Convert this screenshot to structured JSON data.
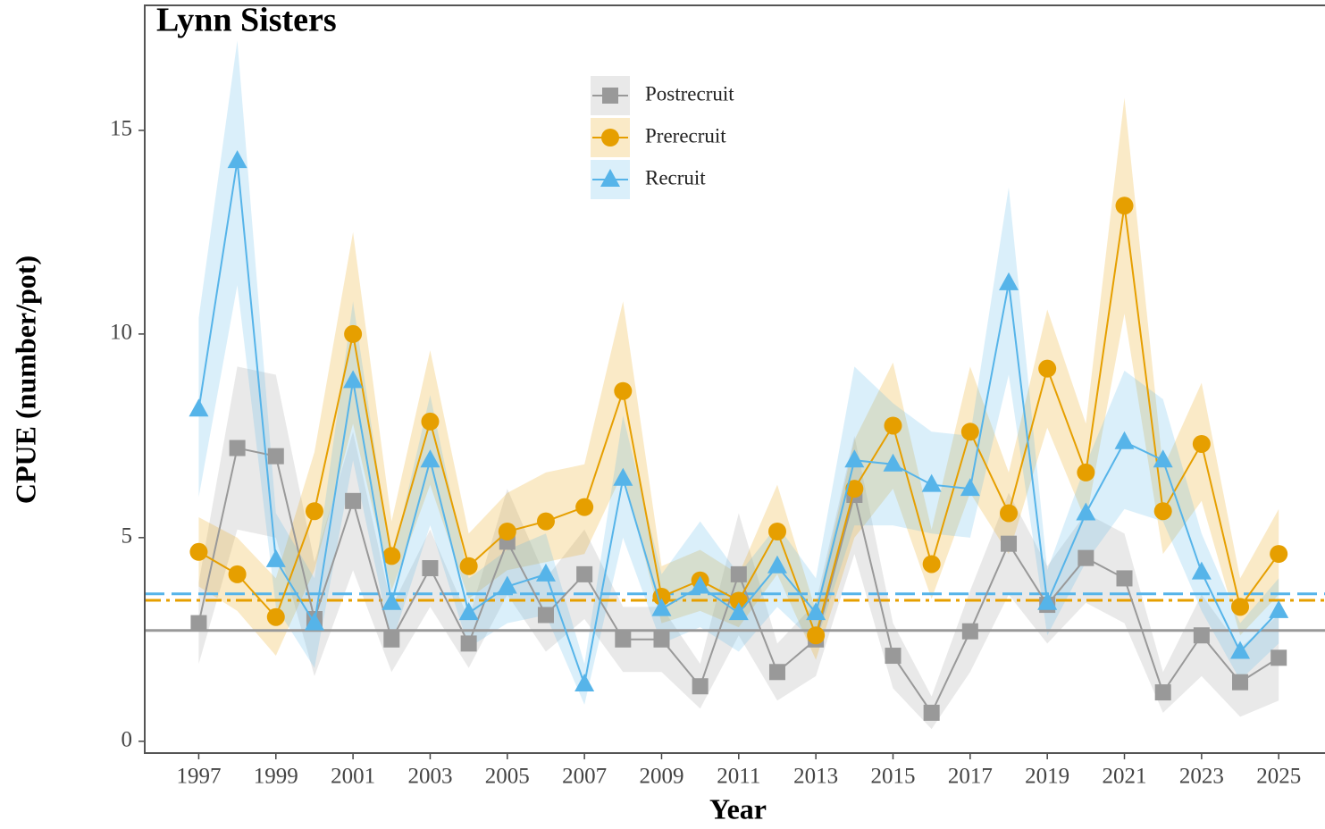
{
  "chart_data": {
    "type": "line",
    "title": "Lynn Sisters",
    "x_label": "Year",
    "y_label": "CPUE (number/pot)",
    "x": [
      1997,
      1998,
      1999,
      2000,
      2001,
      2002,
      2003,
      2004,
      2005,
      2006,
      2007,
      2008,
      2009,
      2010,
      2011,
      2012,
      2013,
      2014,
      2015,
      2016,
      2017,
      2018,
      2019,
      2020,
      2021,
      2022,
      2023,
      2024,
      2025
    ],
    "xlim": [
      1995.6,
      2026.2
    ],
    "xticks": [
      1997,
      1999,
      2001,
      2003,
      2005,
      2007,
      2009,
      2011,
      2013,
      2015,
      2017,
      2019,
      2021,
      2023,
      2025
    ],
    "ylim": [
      -0.29,
      18.07
    ],
    "yticks": [
      0,
      5,
      10,
      15
    ],
    "legend": "top-center",
    "series": [
      {
        "name": "Postrecruit",
        "color": "#999999",
        "marker": "square",
        "reference": 2.72,
        "reference_style": "solid",
        "values": [
          2.9,
          7.2,
          7.0,
          3.0,
          5.9,
          2.5,
          4.25,
          2.4,
          4.9,
          3.1,
          4.1,
          2.5,
          2.5,
          1.35,
          4.1,
          1.7,
          2.5,
          6.05,
          2.1,
          0.7,
          2.7,
          4.85,
          3.35,
          4.5,
          4.0,
          1.2,
          2.6,
          1.45,
          2.05
        ],
        "lower": [
          1.9,
          5.2,
          5.0,
          1.6,
          4.2,
          1.7,
          3.3,
          1.8,
          3.6,
          2.2,
          3.0,
          1.7,
          1.7,
          0.8,
          2.6,
          1.0,
          1.6,
          4.6,
          1.3,
          0.3,
          1.7,
          3.6,
          2.4,
          3.4,
          2.9,
          0.7,
          1.6,
          0.6,
          1.0
        ],
        "upper": [
          3.9,
          9.2,
          9.0,
          4.4,
          7.6,
          3.3,
          5.2,
          3.0,
          6.2,
          4.0,
          5.2,
          3.3,
          3.3,
          1.9,
          5.6,
          2.4,
          3.4,
          7.5,
          2.9,
          1.1,
          3.7,
          6.1,
          4.3,
          5.6,
          5.1,
          1.7,
          3.6,
          2.3,
          3.1
        ]
      },
      {
        "name": "Prerecruit",
        "color": "#e69f00",
        "marker": "circle",
        "reference": 3.46,
        "reference_style": "dashdot",
        "values": [
          4.65,
          4.1,
          3.05,
          5.65,
          10.0,
          4.55,
          7.85,
          4.3,
          5.15,
          5.4,
          5.75,
          8.6,
          3.55,
          3.95,
          3.45,
          5.15,
          2.6,
          6.2,
          7.75,
          4.35,
          7.6,
          5.6,
          9.15,
          6.6,
          13.15,
          5.65,
          7.3,
          3.3,
          4.6
        ],
        "lower": [
          3.8,
          3.2,
          2.1,
          4.2,
          7.8,
          3.7,
          6.3,
          3.5,
          4.2,
          4.4,
          4.6,
          6.6,
          2.9,
          3.2,
          2.8,
          4.1,
          2.0,
          5.0,
          6.2,
          3.5,
          6.1,
          4.6,
          7.7,
          5.4,
          10.5,
          4.6,
          5.9,
          2.6,
          3.6
        ],
        "upper": [
          5.5,
          5.0,
          4.0,
          7.1,
          12.5,
          5.4,
          9.6,
          5.1,
          6.1,
          6.6,
          6.8,
          10.8,
          4.3,
          4.7,
          4.1,
          6.3,
          3.2,
          7.4,
          9.3,
          5.2,
          9.2,
          6.6,
          10.6,
          7.8,
          15.8,
          6.7,
          8.8,
          4.0,
          5.7
        ]
      },
      {
        "name": "Recruit",
        "color": "#56b4e9",
        "marker": "triangle",
        "reference": 3.62,
        "reference_style": "dashed",
        "values": [
          8.15,
          14.25,
          4.45,
          2.9,
          8.85,
          3.4,
          6.9,
          3.15,
          3.8,
          4.1,
          1.4,
          6.45,
          3.25,
          3.8,
          3.15,
          4.3,
          3.15,
          6.9,
          6.8,
          6.3,
          6.2,
          11.25,
          3.4,
          5.6,
          7.35,
          6.9,
          4.15,
          2.2,
          3.2
        ],
        "lower": [
          6.0,
          11.2,
          3.3,
          1.8,
          6.9,
          2.4,
          5.3,
          2.3,
          2.9,
          3.1,
          0.9,
          5.0,
          2.4,
          2.8,
          2.2,
          3.3,
          2.4,
          5.3,
          5.3,
          5.1,
          5.0,
          9.0,
          2.6,
          4.4,
          5.7,
          5.4,
          3.2,
          1.5,
          2.4
        ],
        "upper": [
          10.4,
          17.2,
          5.6,
          4.0,
          10.8,
          4.4,
          8.5,
          4.0,
          4.7,
          5.1,
          1.9,
          8.0,
          4.1,
          5.4,
          4.1,
          5.3,
          4.0,
          9.2,
          8.3,
          7.6,
          7.5,
          13.6,
          4.2,
          6.8,
          9.1,
          8.4,
          5.1,
          2.9,
          4.0
        ]
      }
    ]
  }
}
